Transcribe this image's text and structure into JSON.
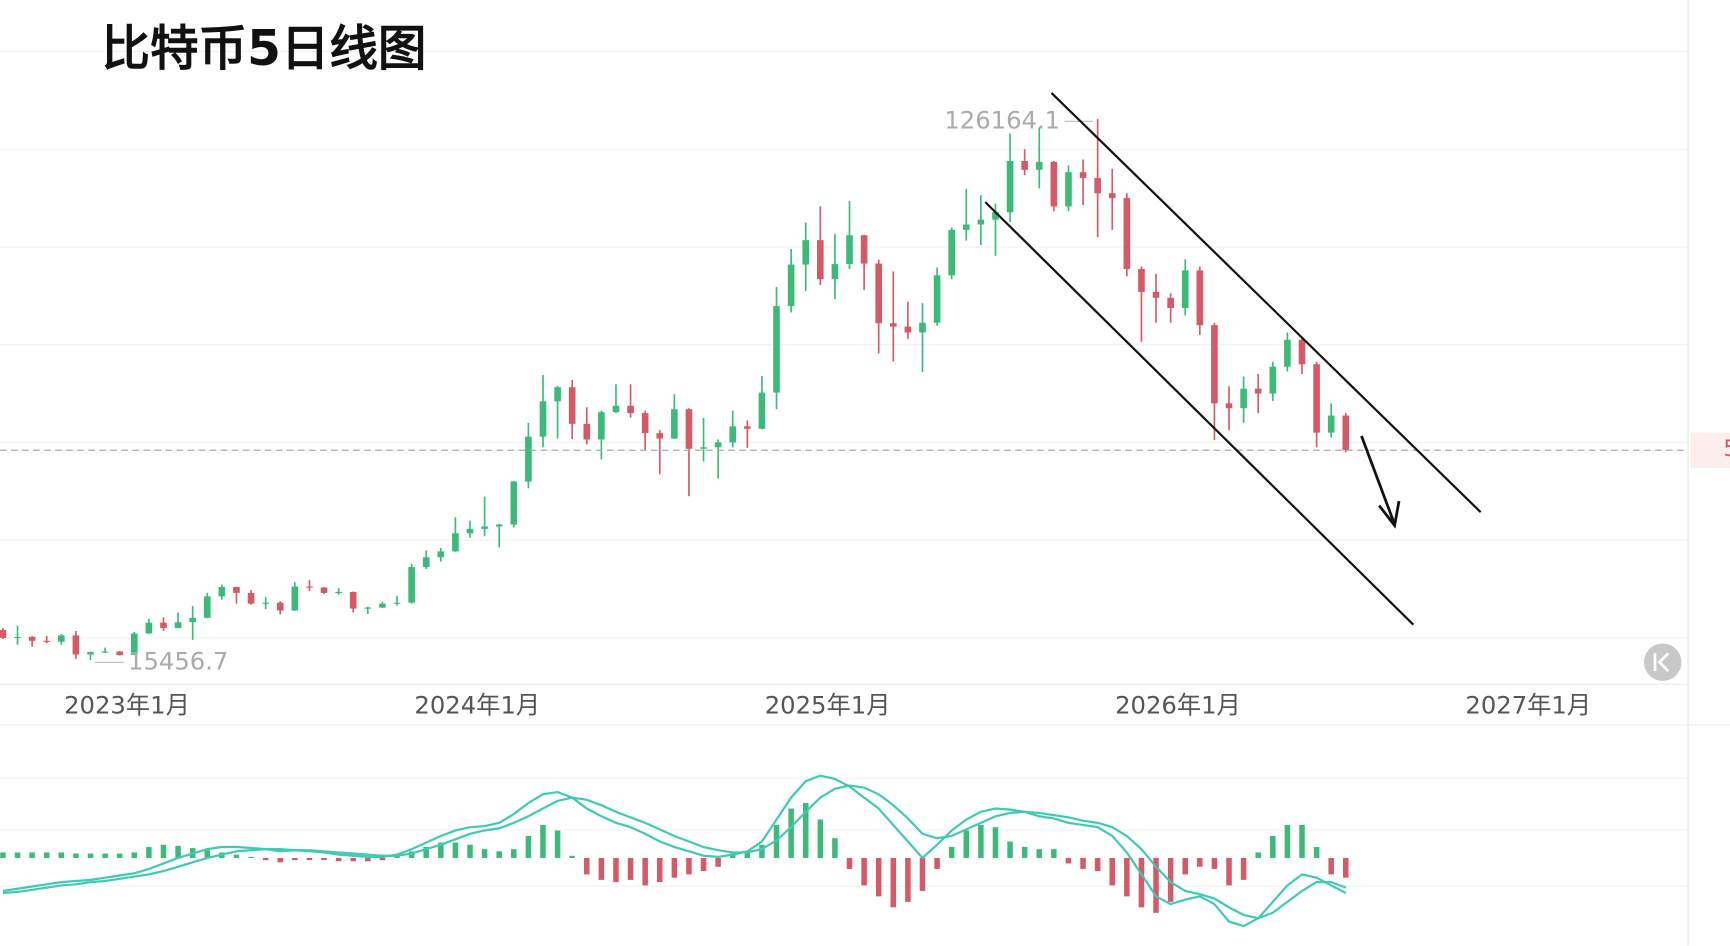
{
  "chart_data": [
    {
      "type": "candlestick",
      "title": "比特币5日线图",
      "up_color": "#3cba7a",
      "down_color": "#d35a66",
      "xlim": [
        -0.2,
        115.45
      ],
      "xticks": [
        {
          "value": 8.5,
          "label": "2023年1月"
        },
        {
          "value": 32.5,
          "label": "2024年1月"
        },
        {
          "value": 56.5,
          "label": "2025年1月"
        },
        {
          "value": 80.5,
          "label": "2026年1月"
        },
        {
          "value": 104.5,
          "label": "2027年1月"
        }
      ],
      "ylim": [
        10500,
        150500
      ],
      "yticks": [
        20000,
        40000,
        60000,
        80000,
        100000,
        120000,
        140000
      ],
      "grid": true,
      "open": [
        21600,
        20000,
        20200,
        19400,
        19200,
        20500,
        16600,
        17100,
        17200,
        16500,
        20900,
        23100,
        22000,
        23200,
        24100,
        28500,
        30400,
        29200,
        27000,
        27200,
        25600,
        30500,
        30300,
        29200,
        29400,
        26000,
        26200,
        27000,
        27200,
        34500,
        36500,
        37700,
        41400,
        42300,
        42800,
        43200,
        52000,
        61200,
        68400,
        71300,
        63800,
        60600,
        66200,
        67500,
        66000,
        61900,
        60800,
        66800,
        58700,
        59000,
        60000,
        63300,
        62800,
        70200,
        87900,
        96400,
        101400,
        93400,
        96500,
        102400,
        96600,
        84400,
        83700,
        82500,
        84500,
        94200,
        103500,
        104600,
        105600,
        107100,
        117600,
        115800,
        117400,
        108300,
        115300,
        114100,
        111000,
        110000,
        95500,
        90800,
        89600,
        87500,
        95200,
        84000,
        68000,
        67000,
        71000,
        70000,
        75500,
        81000,
        76000,
        62000,
        65500
      ],
      "high": [
        22000,
        22500,
        20400,
        20400,
        20800,
        21400,
        17200,
        18000,
        17300,
        21200,
        23900,
        24200,
        25200,
        26500,
        29200,
        30900,
        30500,
        29800,
        28400,
        27500,
        31400,
        31800,
        30400,
        30200,
        29500,
        26400,
        27400,
        28600,
        35200,
        37900,
        38400,
        44700,
        44000,
        48900,
        43300,
        52100,
        64000,
        73800,
        71600,
        72800,
        67200,
        66500,
        71900,
        71900,
        66500,
        62500,
        69900,
        67000,
        65000,
        60600,
        66500,
        64500,
        73600,
        91800,
        99600,
        105000,
        108300,
        102700,
        109400,
        102500,
        97400,
        95000,
        88800,
        88500,
        95800,
        104000,
        111900,
        110600,
        108900,
        123200,
        120000,
        124500,
        117600,
        116700,
        117900,
        126164.1,
        116000,
        111000,
        96000,
        94500,
        90500,
        97500,
        96000,
        84500,
        71500,
        73500,
        74000,
        76500,
        82500,
        81500,
        76500,
        68000,
        66000
      ],
      "low": [
        19800,
        18600,
        18200,
        18900,
        18600,
        15700,
        15456.7,
        16900,
        16400,
        16500,
        20800,
        21400,
        22000,
        19600,
        24000,
        27800,
        27000,
        26800,
        25900,
        24800,
        25500,
        29600,
        29000,
        28800,
        25200,
        24900,
        26100,
        26600,
        27000,
        34100,
        35600,
        37600,
        40500,
        40800,
        38500,
        42600,
        50600,
        59000,
        60800,
        60700,
        59600,
        56500,
        66000,
        65100,
        58400,
        53500,
        60700,
        49000,
        56100,
        52600,
        59000,
        58900,
        62700,
        66800,
        86600,
        91000,
        92200,
        89300,
        95500,
        91200,
        78200,
        76600,
        81200,
        74400,
        83900,
        93400,
        101300,
        100400,
        98200,
        105100,
        114700,
        112000,
        107300,
        107300,
        108600,
        102000,
        103500,
        94000,
        80600,
        84500,
        84500,
        86000,
        82000,
        60500,
        62500,
        64000,
        66000,
        68500,
        74500,
        74000,
        59000,
        61000,
        58000
      ],
      "close": [
        20000,
        20200,
        19400,
        19200,
        20500,
        16600,
        17100,
        17200,
        16500,
        20900,
        23100,
        22000,
        23200,
        24100,
        28500,
        30400,
        29200,
        27000,
        27200,
        25600,
        30500,
        30300,
        29200,
        29400,
        26000,
        26200,
        27000,
        27200,
        34500,
        36500,
        37700,
        41400,
        42300,
        42800,
        43200,
        52000,
        61200,
        68400,
        71300,
        63800,
        60600,
        66200,
        67500,
        66000,
        61900,
        60800,
        66800,
        58700,
        59000,
        60000,
        63300,
        62800,
        70200,
        87900,
        96400,
        101400,
        93400,
        96500,
        102400,
        96600,
        84400,
        83700,
        82500,
        84500,
        94200,
        103500,
        104600,
        105600,
        107100,
        117600,
        115800,
        117400,
        108300,
        115300,
        114100,
        111000,
        110000,
        95500,
        90800,
        89600,
        87500,
        95200,
        84000,
        68000,
        67000,
        71000,
        70000,
        75500,
        81000,
        76000,
        62000,
        65500,
        58400
      ]
    },
    {
      "type": "macd",
      "line_color": "#40c9b5",
      "up_color": "#3cba7a",
      "down_color": "#d35a66",
      "ylim": [
        -80,
        120
      ],
      "dif": [
        -30,
        -28,
        -26,
        -24,
        -22,
        -21,
        -20,
        -18,
        -16,
        -14,
        -10,
        -5,
        0,
        4,
        8,
        10,
        10,
        9,
        8,
        6,
        7,
        6,
        5,
        3,
        2,
        1,
        1,
        3,
        8,
        14,
        20,
        25,
        28,
        29,
        32,
        40,
        50,
        58,
        60,
        55,
        45,
        38,
        32,
        28,
        22,
        15,
        10,
        6,
        2,
        1,
        3,
        6,
        15,
        35,
        55,
        70,
        75,
        72,
        65,
        55,
        45,
        30,
        15,
        0,
        12,
        25,
        35,
        42,
        45,
        44,
        42,
        38,
        36,
        32,
        30,
        28,
        20,
        5,
        -15,
        -35,
        -42,
        -38,
        -35,
        -42,
        -58,
        -62,
        -55,
        -40,
        -25,
        -15,
        -18,
        -25,
        -32
      ],
      "dea": [
        -32,
        -31,
        -29,
        -27,
        -25,
        -24,
        -22,
        -21,
        -19,
        -17,
        -15,
        -12,
        -8,
        -4,
        0,
        3,
        6,
        7,
        8,
        8,
        7,
        7,
        6,
        5,
        4,
        3,
        2,
        2,
        4,
        8,
        12,
        17,
        22,
        25,
        27,
        32,
        38,
        45,
        52,
        55,
        53,
        48,
        42,
        37,
        32,
        26,
        20,
        15,
        10,
        7,
        5,
        5,
        8,
        16,
        28,
        42,
        55,
        63,
        66,
        64,
        58,
        48,
        36,
        22,
        18,
        20,
        26,
        32,
        38,
        41,
        42,
        41,
        39,
        37,
        34,
        32,
        28,
        20,
        8,
        -8,
        -22,
        -30,
        -33,
        -37,
        -45,
        -52,
        -55,
        -50,
        -40,
        -30,
        -22,
        -22,
        -27
      ],
      "hist": [
        5,
        5,
        5,
        5,
        5,
        4,
        4,
        4,
        4,
        5,
        10,
        12,
        11,
        9,
        7,
        5,
        3,
        1,
        -2,
        -4,
        -2,
        -2,
        -2,
        -3,
        -3,
        -3,
        -2,
        2,
        6,
        10,
        14,
        14,
        12,
        8,
        6,
        8,
        20,
        30,
        25,
        2,
        -15,
        -20,
        -22,
        -20,
        -25,
        -22,
        -18,
        -15,
        -12,
        -8,
        4,
        6,
        12,
        30,
        45,
        50,
        35,
        18,
        -10,
        -25,
        -35,
        -45,
        -40,
        -30,
        -10,
        10,
        25,
        30,
        28,
        15,
        10,
        8,
        8,
        -5,
        -10,
        -12,
        -25,
        -35,
        -45,
        -50,
        -40,
        -15,
        -8,
        -10,
        -25,
        -20,
        5,
        20,
        30,
        30,
        10,
        -15,
        -18
      ]
    }
  ]
}
